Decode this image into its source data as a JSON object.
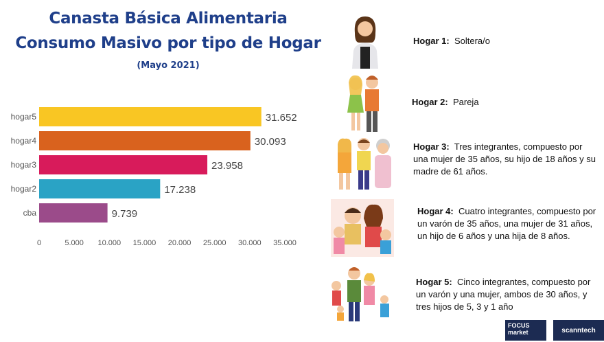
{
  "title": {
    "line1": "Canasta Básica Alimentaria",
    "line2": "Consumo Masivo por tipo de Hogar",
    "period": "(Mayo 2021)"
  },
  "chart_data": {
    "type": "bar",
    "orientation": "horizontal",
    "categories": [
      "hogar5",
      "hogar4",
      "hogar3",
      "hogar2",
      "cba"
    ],
    "values": [
      31652,
      30093,
      23958,
      17238,
      9739
    ],
    "value_labels": [
      "31.652",
      "30.093",
      "23.958",
      "17.238",
      "9.739"
    ],
    "colors": [
      "#f9c623",
      "#d9621e",
      "#d81b5b",
      "#2aa3c5",
      "#9b4b8a"
    ],
    "xlim": [
      0,
      35000
    ],
    "xticks": [
      0,
      5000,
      10000,
      15000,
      20000,
      25000,
      30000,
      35000
    ],
    "xtick_labels": [
      "0",
      "5.000",
      "10.000",
      "15.000",
      "20.000",
      "25.000",
      "30.000",
      "35.000"
    ],
    "title": "Canasta Básica Alimentaria Consumo Masivo por tipo de Hogar",
    "xlabel": "",
    "ylabel": ""
  },
  "households": [
    {
      "label": "Hogar 1:",
      "text": "Soltera/o"
    },
    {
      "label": "Hogar 2:",
      "text": "Pareja"
    },
    {
      "label": "Hogar 3:",
      "text": "Tres integrantes, compuesto por una mujer de 35 años, su hijo de 18 años y su madre de 61 años."
    },
    {
      "label": "Hogar 4:",
      "text": "Cuatro integrantes, compuesto por un varón de 35 años, una mujer de 31 años, un hijo de 6 años y una hija de 8 años."
    },
    {
      "label": "Hogar 5:",
      "text": "Cinco integrantes, compuesto por un varón y una mujer, ambos de 30 años, y tres hijos de 5, 3 y 1 año"
    }
  ],
  "logos": {
    "focus": "FOCUS market",
    "scanntech": "scanntech"
  }
}
